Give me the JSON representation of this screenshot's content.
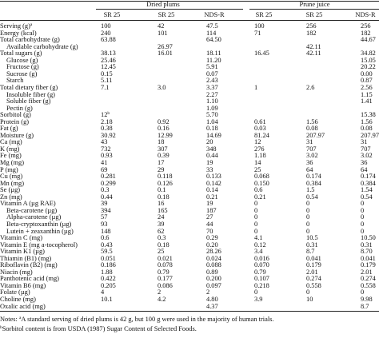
{
  "table": {
    "groups": [
      {
        "label": "Dried plums",
        "span": 3
      },
      {
        "label": "Prune juice",
        "span": 3
      }
    ],
    "columns": [
      "SR 25",
      "SR 25",
      "NDS-R",
      "SR 25",
      "SR 25",
      "NDS-R"
    ],
    "rows": [
      {
        "label": "Serving (g)",
        "label_sup": "a",
        "values": [
          "100",
          "42",
          "47.5",
          "100",
          "256",
          "256"
        ]
      },
      {
        "label": "Energy (kcal)",
        "values": [
          "240",
          "101",
          "114",
          "71",
          "182",
          "182"
        ]
      },
      {
        "label": "Total carbohydrate (g)",
        "values": [
          "63.88",
          null,
          "64.50",
          null,
          null,
          "44.67"
        ]
      },
      {
        "label": "Available carbohydrate (g)",
        "indent": true,
        "values": [
          null,
          "26.97",
          null,
          null,
          "42.11",
          null
        ]
      },
      {
        "label": "Total sugars (g)",
        "values": [
          "38.13",
          "16.01",
          "18.11",
          "16.45",
          "42.11",
          "34.82"
        ]
      },
      {
        "label": "Glucose (g)",
        "indent": true,
        "values": [
          "25.46",
          null,
          "11.20",
          null,
          null,
          "15.05"
        ]
      },
      {
        "label": "Fructose (g)",
        "indent": true,
        "values": [
          "12.45",
          null,
          "5.91",
          null,
          null,
          "20.22"
        ]
      },
      {
        "label": "Sucrose (g)",
        "indent": true,
        "values": [
          "0.15",
          null,
          "0.07",
          null,
          null,
          "0.00"
        ]
      },
      {
        "label": "Starch",
        "indent": true,
        "values": [
          "5.11",
          null,
          "2.43",
          null,
          null,
          "0.87"
        ]
      },
      {
        "label": "Total dietary fiber (g)",
        "values": [
          "7.1",
          "3.0",
          "3.37",
          "1",
          "2.6",
          "2.56"
        ]
      },
      {
        "label": "Insoluble fiber (g)",
        "indent": true,
        "values": [
          null,
          null,
          "2.27",
          null,
          null,
          "1.15"
        ]
      },
      {
        "label": "Soluble fiber (g)",
        "indent": true,
        "values": [
          null,
          null,
          "1.10",
          null,
          null,
          "1.41"
        ]
      },
      {
        "label": "Pectin (g)",
        "indent": true,
        "values": [
          null,
          null,
          "1.09",
          null,
          null,
          null
        ]
      },
      {
        "label": "Sorbitol (g)",
        "values": [
          "12",
          null,
          "5.70",
          null,
          null,
          "15.38"
        ],
        "value_sups": [
          "b",
          null,
          null,
          null,
          null,
          null
        ]
      },
      {
        "label": "Protein (g)",
        "values": [
          "2.18",
          "0.92",
          "1.04",
          "0.61",
          "1.56",
          "1.56"
        ]
      },
      {
        "label": "Fat (g)",
        "values": [
          "0.38",
          "0.16",
          "0.18",
          "0.03",
          "0.08",
          "0.08"
        ]
      },
      {
        "label": "Moisture (g)",
        "values": [
          "30.92",
          "12.99",
          "14.69",
          "81.24",
          "207.97",
          "207.97"
        ]
      },
      {
        "label": "Ca (mg)",
        "values": [
          "43",
          "18",
          "20",
          "12",
          "31",
          "31"
        ]
      },
      {
        "label": "K (mg)",
        "values": [
          "732",
          "307",
          "348",
          "276",
          "707",
          "707"
        ]
      },
      {
        "label": "Fe (mg)",
        "values": [
          "0.93",
          "0.39",
          "0.44",
          "1.18",
          "3.02",
          "3.02"
        ]
      },
      {
        "label": "Mg (mg)",
        "values": [
          "41",
          "17",
          "19",
          "14",
          "36",
          "36"
        ]
      },
      {
        "label": "P (mg)",
        "values": [
          "69",
          "29",
          "33",
          "25",
          "64",
          "64"
        ]
      },
      {
        "label": "Cu (mg)",
        "values": [
          "0.281",
          "0.118",
          "0.133",
          "0.068",
          "0.174",
          "0.174"
        ]
      },
      {
        "label": "Mn (mg)",
        "values": [
          "0.299",
          "0.126",
          "0.142",
          "0.150",
          "0.384",
          "0.384"
        ]
      },
      {
        "label": "Se (µg)",
        "values": [
          "0.3",
          "0.1",
          "0.14",
          "0.6",
          "1.5",
          "1.54"
        ]
      },
      {
        "label": "Zn (mg)",
        "values": [
          "0.44",
          "0.18",
          "0.21",
          "0.21",
          "0.54",
          "0.54"
        ]
      },
      {
        "label": "Vitamin A (µg RAE)",
        "values": [
          "39",
          "16",
          "19",
          "0",
          "0",
          "0"
        ]
      },
      {
        "label": "Beta-carotene (µg)",
        "indent": true,
        "values": [
          "394",
          "165",
          "187",
          "0",
          "0",
          "0"
        ]
      },
      {
        "label": "Alpha-carotene (µg)",
        "indent": true,
        "values": [
          "57",
          "24",
          "27",
          "0",
          "0",
          "0"
        ]
      },
      {
        "label": "Beta-cryptoxanthin (µg)",
        "indent": true,
        "values": [
          "93",
          "39",
          "44",
          "0",
          "0",
          "0"
        ]
      },
      {
        "label": "Lutein + zeaxanthin (µg)",
        "indent": true,
        "values": [
          "148",
          "62",
          "70",
          "0",
          "0",
          "0"
        ]
      },
      {
        "label": "Vitamin C (mg)",
        "values": [
          "0.6",
          "0.3",
          "0.29",
          "4.1",
          "10.5",
          "10.50"
        ]
      },
      {
        "label": "Vitamin E (mg a-tocopherol)",
        "values": [
          "0.43",
          "0.18",
          "0.20",
          "0.12",
          "0.31",
          "0.31"
        ]
      },
      {
        "label": "Vitamin K1 (µg)",
        "values": [
          "59.5",
          "25",
          "28.26",
          "3.4",
          "8.7",
          "8.70"
        ]
      },
      {
        "label": "Thiamin (B1) (mg)",
        "values": [
          "0.051",
          "0.021",
          "0.024",
          "0.016",
          "0.041",
          "0.041"
        ]
      },
      {
        "label": "Riboflavin (B2) (mg)",
        "values": [
          "0.186",
          "0.078",
          "0.088",
          "0.070",
          "0.179",
          "0.179"
        ]
      },
      {
        "label": "Niacin (mg)",
        "values": [
          "1.88",
          "0.79",
          "0.89",
          "0.79",
          "2.01",
          "2.01"
        ]
      },
      {
        "label": "Panthotenic acid (mg)",
        "values": [
          "0.422",
          "0.177",
          "0.200",
          "0.107",
          "0.274",
          "0.274"
        ]
      },
      {
        "label": "Vitamin B6 (mg)",
        "values": [
          "0.205",
          "0.086",
          "0.097",
          "0.218",
          "0.558",
          "0.558"
        ]
      },
      {
        "label": "Folate (µg)",
        "values": [
          "4",
          "2",
          "2",
          "0",
          "0",
          "0"
        ]
      },
      {
        "label": "Choline (mg)",
        "values": [
          "10.1",
          "4.2",
          "4.80",
          "3.9",
          "10",
          "9.98"
        ]
      },
      {
        "label": "Oxalic acid (mg)",
        "values": [
          null,
          null,
          "4.37",
          null,
          null,
          "8.7"
        ]
      }
    ],
    "notes_label": "Notes:",
    "notes": [
      {
        "mark": "a",
        "text": "A standard serving of dried plums is 42 g, but 100 g were used in the majority of human trials."
      },
      {
        "mark": "b",
        "text": "Sorbitol content is from USDA (1987) Sugar Content of Selected Foods."
      }
    ]
  }
}
